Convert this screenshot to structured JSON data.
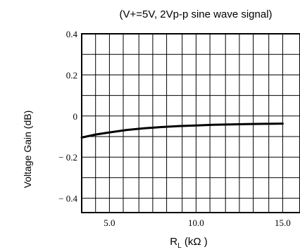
{
  "chart_data": {
    "type": "line",
    "title": "(V+=5V, 2Vp-p sine wave signal)",
    "xlabel_main": "R",
    "xlabel_sub": "L",
    "xlabel_unit": " (kΩ )",
    "ylabel": "Voltage Gain (dB)",
    "xlim": [
      3.4,
      16.0
    ],
    "ylim": [
      -0.47,
      0.4
    ],
    "x_ticks": [
      {
        "value": 5.0,
        "label": "5.0"
      },
      {
        "value": 10.0,
        "label": "10.0"
      },
      {
        "value": 15.0,
        "label": "15.0"
      }
    ],
    "y_ticks": [
      {
        "value": 0.4,
        "label": "0.4"
      },
      {
        "value": 0.2,
        "label": "0.2"
      },
      {
        "value": 0.0,
        "label": "0"
      },
      {
        "value": -0.2,
        "label": "− 0.2"
      },
      {
        "value": -0.4,
        "label": "− 0.4"
      }
    ],
    "x_gridlines": [
      4.2,
      5.0,
      5.8,
      6.7,
      7.5,
      8.3,
      9.2,
      10.0,
      10.8,
      11.7,
      12.5,
      13.3,
      14.2,
      15.0
    ],
    "y_gridlines": [
      0.4,
      0.3,
      0.2,
      0.1,
      0.0,
      -0.1,
      -0.2,
      -0.3,
      -0.4
    ],
    "grid": true,
    "series": [
      {
        "color": "#000000",
        "x": [
          3.4,
          4.2,
          5.0,
          6.0,
          7.0,
          8.0,
          9.0,
          10.0,
          11.0,
          12.0,
          13.0,
          14.0,
          15.0
        ],
        "y": [
          -0.105,
          -0.09,
          -0.08,
          -0.068,
          -0.06,
          -0.054,
          -0.049,
          -0.046,
          -0.043,
          -0.041,
          -0.039,
          -0.038,
          -0.037
        ]
      }
    ]
  }
}
